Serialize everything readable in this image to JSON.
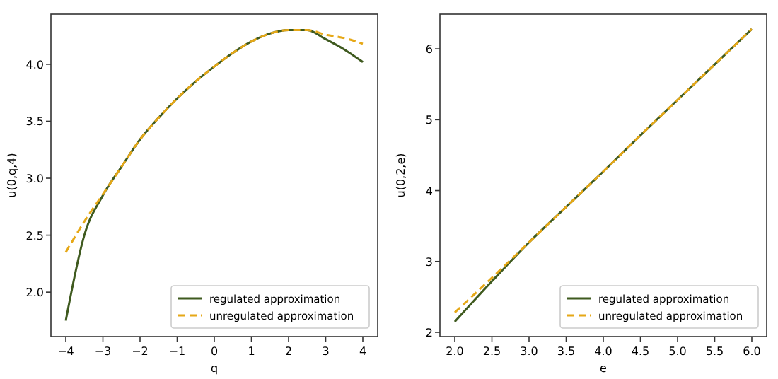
{
  "chart_data": [
    {
      "type": "line",
      "xlabel": "q",
      "ylabel": "u(0,q,4)",
      "x": [
        -4,
        -3.5,
        -3,
        -2.5,
        -2,
        -1.5,
        -1,
        -0.5,
        0,
        0.5,
        1,
        1.5,
        2,
        2.5,
        3,
        3.5,
        4
      ],
      "xlim": [
        -4.4,
        4.4
      ],
      "xticks": [
        {
          "value": -4,
          "label": "−4"
        },
        {
          "value": -3,
          "label": "−3"
        },
        {
          "value": -2,
          "label": "−2"
        },
        {
          "value": -1,
          "label": "−1"
        },
        0,
        1,
        2,
        3,
        4
      ],
      "ylim": [
        1.61,
        4.44
      ],
      "yticks": [
        {
          "value": 2,
          "label": "2.0"
        },
        {
          "value": 2.5,
          "label": "2.5"
        },
        {
          "value": 3,
          "label": "3.0"
        },
        {
          "value": 3.5,
          "label": "3.5"
        },
        {
          "value": 4,
          "label": "4.0"
        }
      ],
      "legend": "bottom right",
      "series": [
        {
          "name": "regulated approximation",
          "color": "#3f5a1f",
          "line_style": "solid",
          "values": [
            1.75,
            2.5,
            2.85,
            3.1,
            3.34,
            3.53,
            3.7,
            3.85,
            3.98,
            4.1,
            4.2,
            4.27,
            4.3,
            4.3,
            4.22,
            4.13,
            4.02
          ]
        },
        {
          "name": "unregulated approximation",
          "color": "#e6a817",
          "line_style": "dashed",
          "values": [
            2.35,
            2.62,
            2.86,
            3.1,
            3.34,
            3.53,
            3.7,
            3.85,
            3.98,
            4.1,
            4.2,
            4.27,
            4.3,
            4.3,
            4.26,
            4.23,
            4.18
          ]
        }
      ]
    },
    {
      "type": "line",
      "xlabel": "e",
      "ylabel": "u(0,2,e)",
      "x": [
        2,
        2.5,
        3,
        3.5,
        4,
        4.5,
        5,
        5.5,
        6
      ],
      "xlim": [
        1.8,
        6.2
      ],
      "xticks": [
        {
          "value": 2,
          "label": "2.0"
        },
        {
          "value": 2.5,
          "label": "2.5"
        },
        {
          "value": 3,
          "label": "3.0"
        },
        {
          "value": 3.5,
          "label": "3.5"
        },
        {
          "value": 4,
          "label": "4.0"
        },
        {
          "value": 4.5,
          "label": "4.5"
        },
        {
          "value": 5,
          "label": "5.0"
        },
        {
          "value": 5.5,
          "label": "5.5"
        },
        {
          "value": 6,
          "label": "6.0"
        }
      ],
      "ylim": [
        1.94,
        6.49
      ],
      "yticks": [
        2,
        3,
        4,
        5,
        6
      ],
      "legend": "bottom right",
      "series": [
        {
          "name": "regulated approximation",
          "color": "#3f5a1f",
          "line_style": "solid",
          "values": [
            2.15,
            2.72,
            3.27,
            3.77,
            4.27,
            4.78,
            5.28,
            5.78,
            6.28
          ]
        },
        {
          "name": "unregulated approximation",
          "color": "#e6a817",
          "line_style": "dashed",
          "values": [
            2.28,
            2.77,
            3.27,
            3.77,
            4.27,
            4.78,
            5.28,
            5.78,
            6.28
          ]
        }
      ]
    }
  ]
}
